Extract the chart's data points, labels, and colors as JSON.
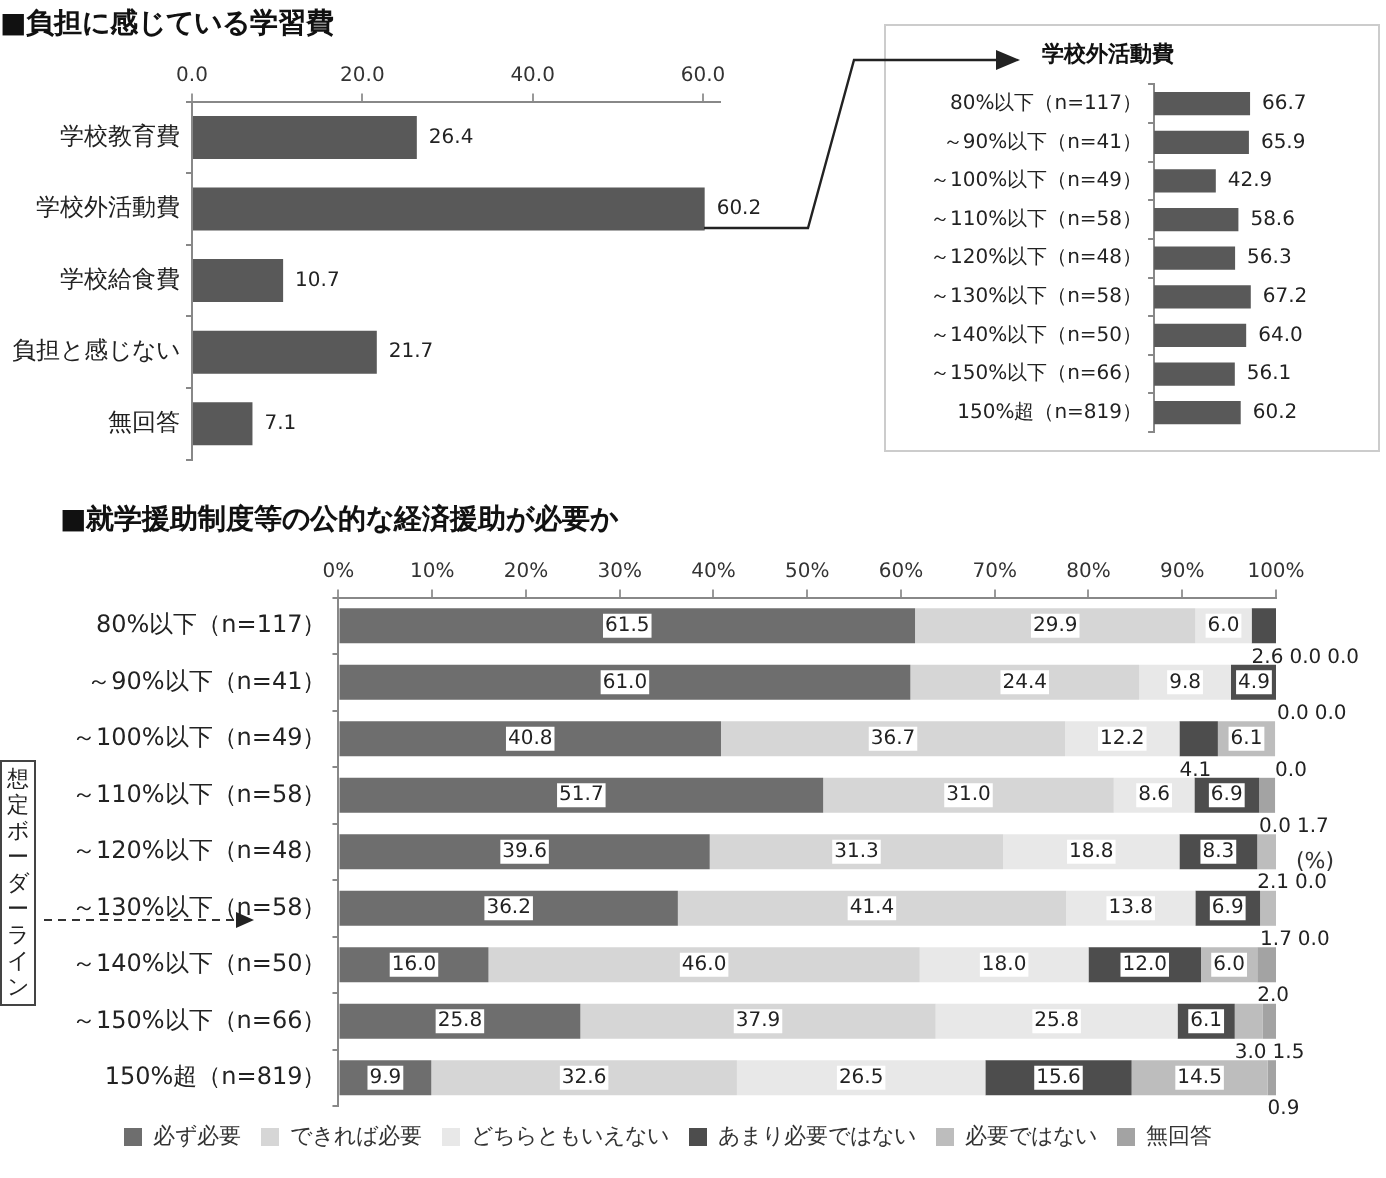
{
  "chart_data": [
    {
      "type": "bar",
      "orientation": "horizontal",
      "title": "■負担に感じている学習費",
      "categories": [
        "学校教育費",
        "学校外活動費",
        "学校給食費",
        "負担と感じない",
        "無回答"
      ],
      "values": [
        26.4,
        60.2,
        10.7,
        21.7,
        7.1
      ],
      "value_labels": [
        "26.4",
        "60.2",
        "10.7",
        "21.7",
        "7.1"
      ],
      "color": "#595959",
      "xlim": [
        0,
        62
      ],
      "xticks": [
        {
          "value": 0,
          "label": "0.0"
        },
        {
          "value": 20,
          "label": "20.0"
        },
        {
          "value": 40,
          "label": "40.0"
        },
        {
          "value": 60,
          "label": "60.0"
        }
      ]
    },
    {
      "type": "bar",
      "orientation": "horizontal",
      "title": "学校外活動費",
      "tick_labels": "y",
      "categories": [
        "80%以下（n=117）",
        "～90%以下（n=41）",
        "～100%以下（n=49）",
        "～110%以下（n=58）",
        "～120%以下（n=48）",
        "～130%以下（n=58）",
        "～140%以下（n=50）",
        "～150%以下（n=66）",
        "150%超（n=819）"
      ],
      "values": [
        66.7,
        65.9,
        42.9,
        58.6,
        56.3,
        67.2,
        64.0,
        56.1,
        60.2
      ],
      "value_labels": [
        "66.7",
        "65.9",
        "42.9",
        "58.6",
        "56.3",
        "67.2",
        "64.0",
        "56.1",
        "60.2"
      ],
      "color": "#595959"
    },
    {
      "type": "bar",
      "orientation": "horizontal",
      "stacked": true,
      "title": "■就学援助制度等の公的な経済援助が必要か",
      "categories": [
        "80%以下（n=117）",
        "～90%以下（n=41）",
        "～100%以下（n=49）",
        "～110%以下（n=58）",
        "～120%以下（n=48）",
        "～130%以下（n=58）",
        "～140%以下（n=50）",
        "～150%以下（n=66）",
        "150%超（n=819）"
      ],
      "xlim": [
        0,
        100
      ],
      "xticks": [
        {
          "value": 0,
          "label": "0%"
        },
        {
          "value": 10,
          "label": "10%"
        },
        {
          "value": 20,
          "label": "20%"
        },
        {
          "value": 30,
          "label": "30%"
        },
        {
          "value": 40,
          "label": "40%"
        },
        {
          "value": 50,
          "label": "50%"
        },
        {
          "value": 60,
          "label": "60%"
        },
        {
          "value": 70,
          "label": "70%"
        },
        {
          "value": 80,
          "label": "80%"
        },
        {
          "value": 90,
          "label": "90%"
        },
        {
          "value": 100,
          "label": "100%"
        }
      ],
      "legend": "bottom",
      "annotations": [
        "(%)",
        "想定ボーダーライン"
      ],
      "series": [
        {
          "name": "必ず必要",
          "color": "#6e6e6e",
          "values": [
            61.5,
            61.0,
            40.8,
            51.7,
            39.6,
            36.2,
            16.0,
            25.8,
            9.9
          ],
          "value_labels": [
            "61.5",
            "61.0",
            "40.8",
            "51.7",
            "39.6",
            "36.2",
            "16.0",
            "25.8",
            "9.9"
          ]
        },
        {
          "name": "できれば必要",
          "color": "#d6d6d6",
          "values": [
            29.9,
            24.4,
            36.7,
            31.0,
            31.3,
            41.4,
            46.0,
            37.9,
            32.6
          ],
          "value_labels": [
            "29.9",
            "24.4",
            "36.7",
            "31.0",
            "31.3",
            "41.4",
            "46.0",
            "37.9",
            "32.6"
          ]
        },
        {
          "name": "どちらともいえない",
          "color": "#e8e8e8",
          "values": [
            6.0,
            9.8,
            12.2,
            8.6,
            18.8,
            13.8,
            18.0,
            25.8,
            26.5
          ],
          "value_labels": [
            "6.0",
            "9.8",
            "12.2",
            "8.6",
            "18.8",
            "13.8",
            "18.0",
            "25.8",
            "26.5"
          ]
        },
        {
          "name": "あまり必要ではない",
          "color": "#4d4d4d",
          "values": [
            2.6,
            4.9,
            4.1,
            6.9,
            8.3,
            6.9,
            12.0,
            6.1,
            15.6
          ],
          "value_labels": [
            "2.6",
            "4.9",
            "4.1",
            "6.9",
            "8.3",
            "6.9",
            "12.0",
            "6.1",
            "15.6"
          ]
        },
        {
          "name": "必要ではない",
          "color": "#bdbdbd",
          "values": [
            0.0,
            0.0,
            6.1,
            0.0,
            2.1,
            1.7,
            6.0,
            3.0,
            14.5
          ],
          "value_labels": [
            "0.0",
            "0.0",
            "6.1",
            "0.0",
            "2.1",
            "1.7",
            "6.0",
            "3.0",
            "14.5"
          ]
        },
        {
          "name": "無回答",
          "color": "#a3a3a3",
          "values": [
            0.0,
            0.0,
            0.0,
            1.7,
            0.0,
            0.0,
            2.0,
            1.5,
            0.9
          ],
          "value_labels": [
            "0.0",
            "0.0",
            "0.0",
            "1.7",
            "0.0",
            "0.0",
            "2.0",
            "1.5",
            "0.9"
          ]
        }
      ]
    }
  ]
}
